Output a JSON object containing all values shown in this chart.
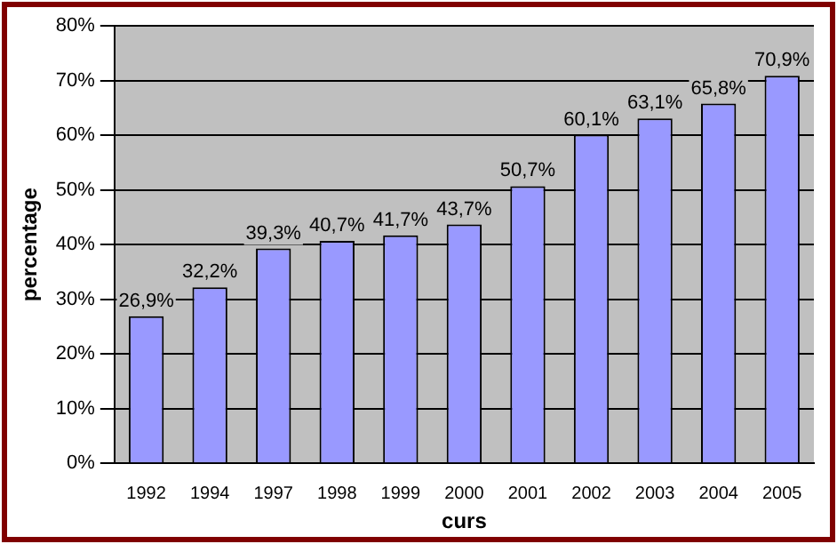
{
  "chart_data": {
    "type": "bar",
    "xlabel": "curs",
    "ylabel": "percentage",
    "categories": [
      "1992",
      "1994",
      "1997",
      "1998",
      "1999",
      "2000",
      "2001",
      "2002",
      "2003",
      "2004",
      "2005"
    ],
    "values": [
      26.9,
      32.2,
      39.3,
      40.7,
      41.7,
      43.7,
      50.7,
      60.1,
      63.1,
      65.8,
      70.9
    ],
    "value_labels": [
      "26,9%",
      "32,2%",
      "39,3%",
      "40,7%",
      "41,7%",
      "43,7%",
      "50,7%",
      "60,1%",
      "63,1%",
      "65,8%",
      "70,9%"
    ],
    "color": "#9999ff",
    "ylim": [
      0,
      80
    ],
    "yticks": [
      {
        "value": 0,
        "label": "0%"
      },
      {
        "value": 10,
        "label": "10%"
      },
      {
        "value": 20,
        "label": "20%"
      },
      {
        "value": 30,
        "label": "30%"
      },
      {
        "value": 40,
        "label": "40%"
      },
      {
        "value": 50,
        "label": "50%"
      },
      {
        "value": 60,
        "label": "60%"
      },
      {
        "value": 70,
        "label": "70%"
      },
      {
        "value": 80,
        "label": "80%"
      }
    ],
    "grid": "y",
    "legend": false
  }
}
